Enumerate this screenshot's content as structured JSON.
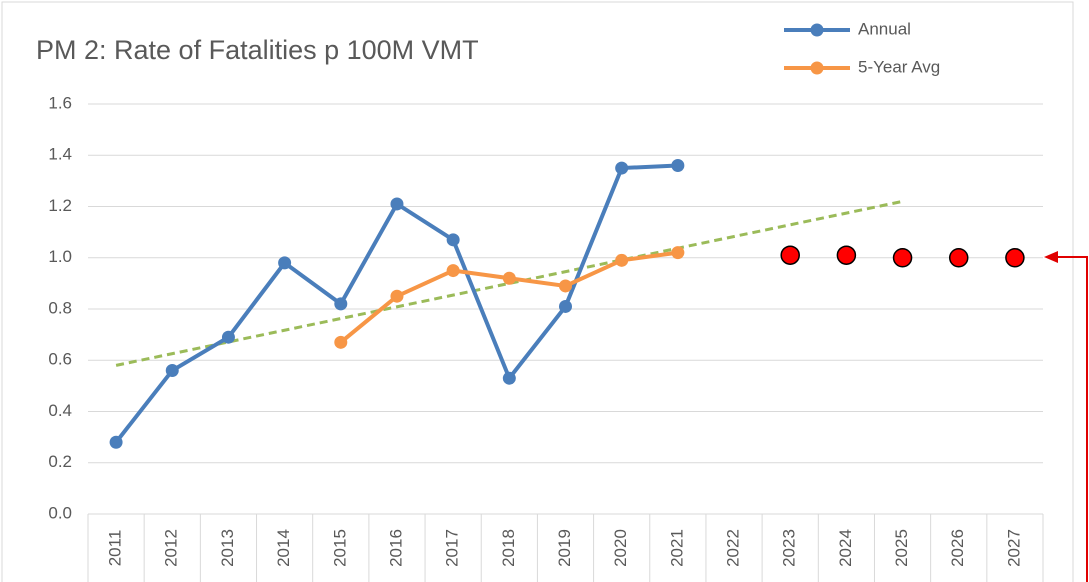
{
  "chart_data": {
    "type": "line",
    "title": "PM 2: Rate of Fatalities p 100M VMT",
    "categories": [
      "2011",
      "2012",
      "2013",
      "2014",
      "2015",
      "2016",
      "2017",
      "2018",
      "2019",
      "2020",
      "2021",
      "2022",
      "2023",
      "2024",
      "2025",
      "2026",
      "2027"
    ],
    "series": [
      {
        "name": "Annual",
        "color": "#4a7ebb",
        "values": [
          0.28,
          0.56,
          0.69,
          0.98,
          0.82,
          1.21,
          1.07,
          0.53,
          0.81,
          1.35,
          1.36,
          null,
          null,
          null,
          null,
          null,
          null
        ]
      },
      {
        "name": "5-Year Avg",
        "color": "#f79646",
        "values": [
          null,
          null,
          null,
          null,
          0.67,
          0.85,
          0.95,
          0.92,
          0.89,
          0.99,
          1.02,
          null,
          null,
          null,
          null,
          null,
          null
        ]
      },
      {
        "type": "scatter",
        "color": "#ff0000",
        "values": [
          null,
          null,
          null,
          null,
          null,
          null,
          null,
          null,
          null,
          null,
          null,
          null,
          1.01,
          1.01,
          1.0,
          1.0,
          1.0
        ]
      }
    ],
    "trendline": {
      "color": "#9bbb59",
      "categories": [
        "2011",
        "2025"
      ],
      "values": [
        0.58,
        1.22
      ]
    },
    "ylim": [
      0,
      1.6
    ],
    "yticks": [
      {
        "value": 0,
        "label": "0.0"
      },
      0.2,
      0.4,
      0.6,
      0.8,
      {
        "value": 1,
        "label": "1.0"
      },
      1.2,
      1.4,
      1.6
    ],
    "grid": true,
    "legend": "top-right"
  }
}
